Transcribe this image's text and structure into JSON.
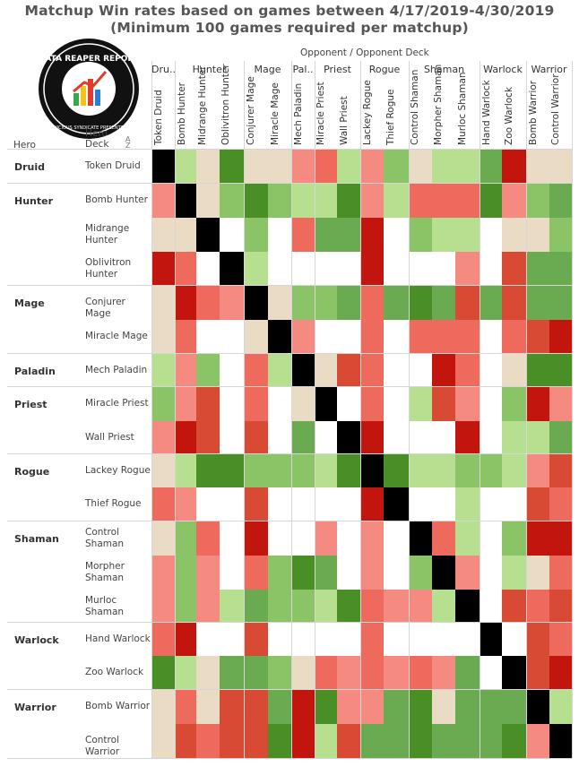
{
  "title_line1": "Matchup Win rates based on games between 4/17/2019-4/30/2019",
  "title_line2": "(Minimum 100 games required per matchup)",
  "logo": {
    "text_top": "DATA REAPER REPORT",
    "text_bottom": "VICIOUS SYNDICATE PRESENTS"
  },
  "opponent_header": "Opponent  /  Opponent Deck",
  "hero_header": "Hero",
  "deck_header": "Hero Deck",
  "opponent_groups": [
    "Dru..",
    "Hunter",
    "Mage",
    "Pal..",
    "Priest",
    "Rogue",
    "Shaman",
    "Warlock",
    "Warrior"
  ],
  "opponent_decks": [
    "Token Druid",
    "Bomb Hunter",
    "Midrange Hunter",
    "Oblivitron Hunter",
    "Conjurer Mage",
    "Miracle Mage",
    "Mech Paladin",
    "Miracle Priest",
    "Wall Priest",
    "Lackey Rogue",
    "Thief Rogue",
    "Control Shaman",
    "Morpher Shaman",
    "Murloc Shaman",
    "Hand Warlock",
    "Zoo Warlock",
    "Bomb Warrior",
    "Control Warrior"
  ],
  "hero_groups": [
    "Druid",
    "Hunter",
    "Mage",
    "Paladin",
    "Priest",
    "Rogue",
    "Shaman",
    "Warlock",
    "Warrior"
  ],
  "hero_decks": [
    "Token Druid",
    "Bomb Hunter",
    "Midrange Hunter",
    "Oblivitron Hunter",
    "Conjurer Mage",
    "Miracle Mage",
    "Mech Paladin",
    "Miracle Priest",
    "Wall Priest",
    "Lackey Rogue",
    "Thief Rogue",
    "Control Shaman",
    "Morpher Shaman",
    "Murloc Shaman",
    "Hand Warlock",
    "Zoo Warlock",
    "Bomb Warrior",
    "Control Warrior"
  ],
  "legend_colors": {
    "x": "#000000",
    "n": "#ffffff",
    "e": "#eadcc4",
    "l1": "#b6df8f",
    "l2": "#8bc467",
    "l3": "#6aab52",
    "l4": "#4a8f25",
    "r1": "#fba497",
    "r2": "#f58a80",
    "r3": "#ee6a5c",
    "r4": "#d84a33",
    "r5": "#c1150e"
  },
  "chart_data": {
    "type": "heatmap",
    "title": "Matchup Win rates based on games between 4/17/2019-4/30/2019",
    "subtitle": "(Minimum 100 games required per matchup)",
    "x_label": "Opponent / Opponent Deck",
    "y_label": "Hero / Hero Deck",
    "columns": [
      "Token Druid",
      "Bomb Hunter",
      "Midrange Hunter",
      "Oblivitron Hunter",
      "Conjurer Mage",
      "Miracle Mage",
      "Mech Paladin",
      "Miracle Priest",
      "Wall Priest",
      "Lackey Rogue",
      "Thief Rogue",
      "Control Shaman",
      "Morpher Shaman",
      "Murloc Shaman",
      "Hand Warlock",
      "Zoo Warlock",
      "Bomb Warrior",
      "Control Warrior"
    ],
    "rows": [
      "Token Druid",
      "Bomb Hunter",
      "Midrange Hunter",
      "Oblivitron Hunter",
      "Conjurer Mage",
      "Miracle Mage",
      "Mech Paladin",
      "Miracle Priest",
      "Wall Priest",
      "Lackey Rogue",
      "Thief Rogue",
      "Control Shaman",
      "Morpher Shaman",
      "Murloc Shaman",
      "Hand Warlock",
      "Zoo Warlock",
      "Bomb Warrior",
      "Control Warrior"
    ],
    "color_codes": "x = same deck (black), n = no data (white), e = even (beige), l1-l4 = favored (light to dark green), r1-r5 = unfavored (light to dark red)",
    "cells": [
      [
        "x",
        "l1",
        "e",
        "l4",
        "e",
        "e",
        "r2",
        "r3",
        "l1",
        "r2",
        "l2",
        "e",
        "l1",
        "l1",
        "l3",
        "r5",
        "e",
        "e"
      ],
      [
        "r2",
        "x",
        "e",
        "l2",
        "l4",
        "l2",
        "l1",
        "l1",
        "l4",
        "r2",
        "l1",
        "r3",
        "r3",
        "r3",
        "l4",
        "r2",
        "l2",
        "l3"
      ],
      [
        "e",
        "e",
        "x",
        "n",
        "l2",
        "n",
        "r3",
        "l3",
        "l3",
        "r5",
        "n",
        "l2",
        "l1",
        "l1",
        "n",
        "e",
        "e",
        "l2"
      ],
      [
        "r5",
        "r3",
        "n",
        "x",
        "l1",
        "n",
        "n",
        "n",
        "n",
        "r5",
        "n",
        "n",
        "n",
        "r2",
        "n",
        "r4",
        "l3",
        "l3"
      ],
      [
        "e",
        "r5",
        "r3",
        "r2",
        "x",
        "e",
        "l2",
        "l2",
        "l3",
        "r3",
        "l3",
        "l4",
        "l3",
        "r4",
        "l3",
        "r4",
        "l3",
        "l3"
      ],
      [
        "e",
        "r3",
        "n",
        "n",
        "e",
        "x",
        "r2",
        "n",
        "n",
        "r3",
        "n",
        "r3",
        "r3",
        "r3",
        "n",
        "r3",
        "r4",
        "r5"
      ],
      [
        "l1",
        "r2",
        "l2",
        "n",
        "r3",
        "l1",
        "x",
        "e",
        "r4",
        "r3",
        "n",
        "n",
        "r5",
        "r3",
        "n",
        "e",
        "l4",
        "l4"
      ],
      [
        "l2",
        "r2",
        "r4",
        "n",
        "r3",
        "n",
        "e",
        "x",
        "n",
        "r3",
        "n",
        "l1",
        "r4",
        "r2",
        "n",
        "l2",
        "r5",
        "r2"
      ],
      [
        "r2",
        "r5",
        "r4",
        "n",
        "r4",
        "n",
        "l3",
        "n",
        "x",
        "r5",
        "n",
        "n",
        "n",
        "r5",
        "n",
        "l1",
        "l1",
        "l3"
      ],
      [
        "e",
        "l1",
        "l4",
        "l4",
        "l2",
        "l2",
        "l2",
        "l1",
        "l4",
        "x",
        "l4",
        "l1",
        "l1",
        "l2",
        "l2",
        "l1",
        "r2",
        "r4"
      ],
      [
        "r3",
        "r2",
        "n",
        "n",
        "r4",
        "n",
        "n",
        "n",
        "n",
        "r5",
        "x",
        "n",
        "n",
        "l1",
        "n",
        "n",
        "r4",
        "r3"
      ],
      [
        "e",
        "l2",
        "r3",
        "n",
        "r5",
        "n",
        "n",
        "r2",
        "n",
        "r2",
        "n",
        "x",
        "r3",
        "l1",
        "n",
        "l2",
        "r5",
        "r5"
      ],
      [
        "r2",
        "l2",
        "r2",
        "n",
        "r3",
        "l2",
        "l4",
        "l3",
        "n",
        "r2",
        "n",
        "l2",
        "x",
        "r2",
        "n",
        "l1",
        "e",
        "r3"
      ],
      [
        "r2",
        "l2",
        "r2",
        "l1",
        "l3",
        "l2",
        "l2",
        "l1",
        "l4",
        "r3",
        "r2",
        "r2",
        "l1",
        "x",
        "n",
        "r4",
        "r3",
        "r4"
      ],
      [
        "r3",
        "r5",
        "n",
        "n",
        "r4",
        "n",
        "n",
        "n",
        "n",
        "r3",
        "n",
        "n",
        "n",
        "n",
        "x",
        "n",
        "r4",
        "r3"
      ],
      [
        "l4",
        "l1",
        "e",
        "l3",
        "l3",
        "l2",
        "e",
        "r3",
        "r2",
        "r3",
        "r2",
        "r3",
        "r2",
        "l3",
        "n",
        "x",
        "r4",
        "r5"
      ],
      [
        "e",
        "r3",
        "e",
        "r4",
        "r4",
        "l3",
        "r5",
        "l4",
        "r2",
        "r2",
        "l3",
        "l4",
        "e",
        "l3",
        "l3",
        "l3",
        "x",
        "l1"
      ],
      [
        "e",
        "r4",
        "r3",
        "r4",
        "r4",
        "l4",
        "r5",
        "l1",
        "r4",
        "l3",
        "l3",
        "l4",
        "l3",
        "l3",
        "l3",
        "l4",
        "r2",
        "x"
      ]
    ]
  }
}
